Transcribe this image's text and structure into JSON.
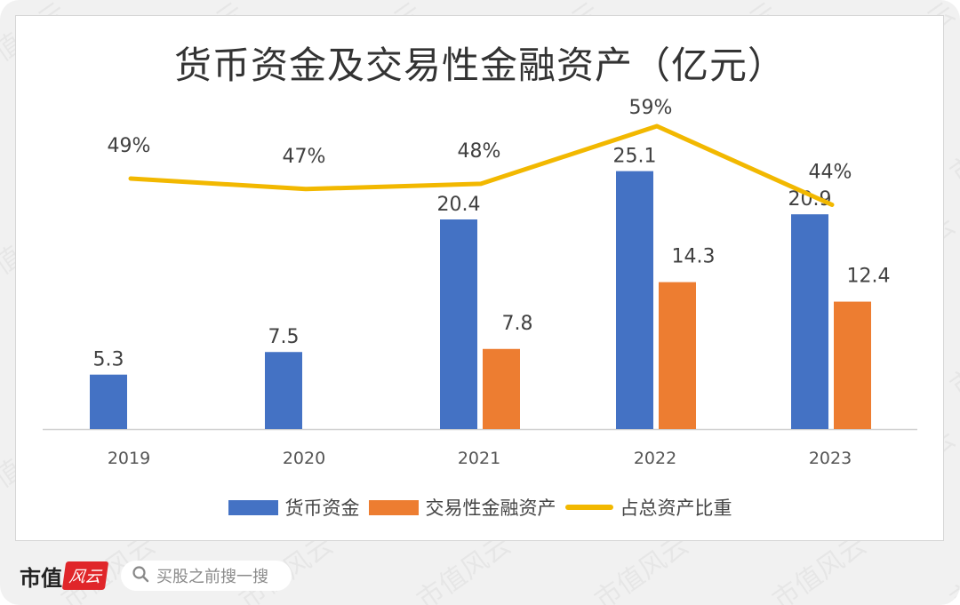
{
  "title": "货币资金及交易性金融资产（亿元）",
  "colors": {
    "cash": "#4472c4",
    "trading": "#ed7d31",
    "ratio": "#f2b800",
    "axis": "#d0d0d0",
    "label": "#404040"
  },
  "legend": [
    {
      "label": "货币资金",
      "type": "bar",
      "color_key": "cash"
    },
    {
      "label": "交易性金融资产",
      "type": "bar",
      "color_key": "trading"
    },
    {
      "label": "占总资产比重",
      "type": "line",
      "color_key": "ratio"
    }
  ],
  "chart_data": {
    "type": "bar",
    "title": "货币资金及交易性金融资产（亿元）",
    "categories": [
      "2019",
      "2020",
      "2021",
      "2022",
      "2023"
    ],
    "series": [
      {
        "name": "货币资金",
        "type": "bar",
        "values": [
          5.3,
          7.5,
          20.4,
          25.1,
          20.9
        ],
        "labels": [
          "5.3",
          "7.5",
          "20.4",
          "25.1",
          "20.9"
        ]
      },
      {
        "name": "交易性金融资产",
        "type": "bar",
        "values": [
          null,
          null,
          7.8,
          14.3,
          12.4
        ],
        "labels": [
          null,
          null,
          "7.8",
          "14.3",
          "12.4"
        ]
      },
      {
        "name": "占总资产比重",
        "type": "line",
        "axis": "secondary",
        "values": [
          49,
          47,
          48,
          59,
          44
        ],
        "labels": [
          "49%",
          "47%",
          "48%",
          "59%",
          "44%"
        ]
      }
    ],
    "xlabel": "",
    "ylabel": "",
    "ylim": [
      0,
      30
    ],
    "y2lim": [
      0,
      100
    ],
    "grid": false,
    "legend_position": "bottom"
  },
  "watermark": "市值风云",
  "footer": {
    "brand_text": "市值",
    "brand_badge": "风云",
    "search_placeholder": "买股之前搜一搜"
  }
}
